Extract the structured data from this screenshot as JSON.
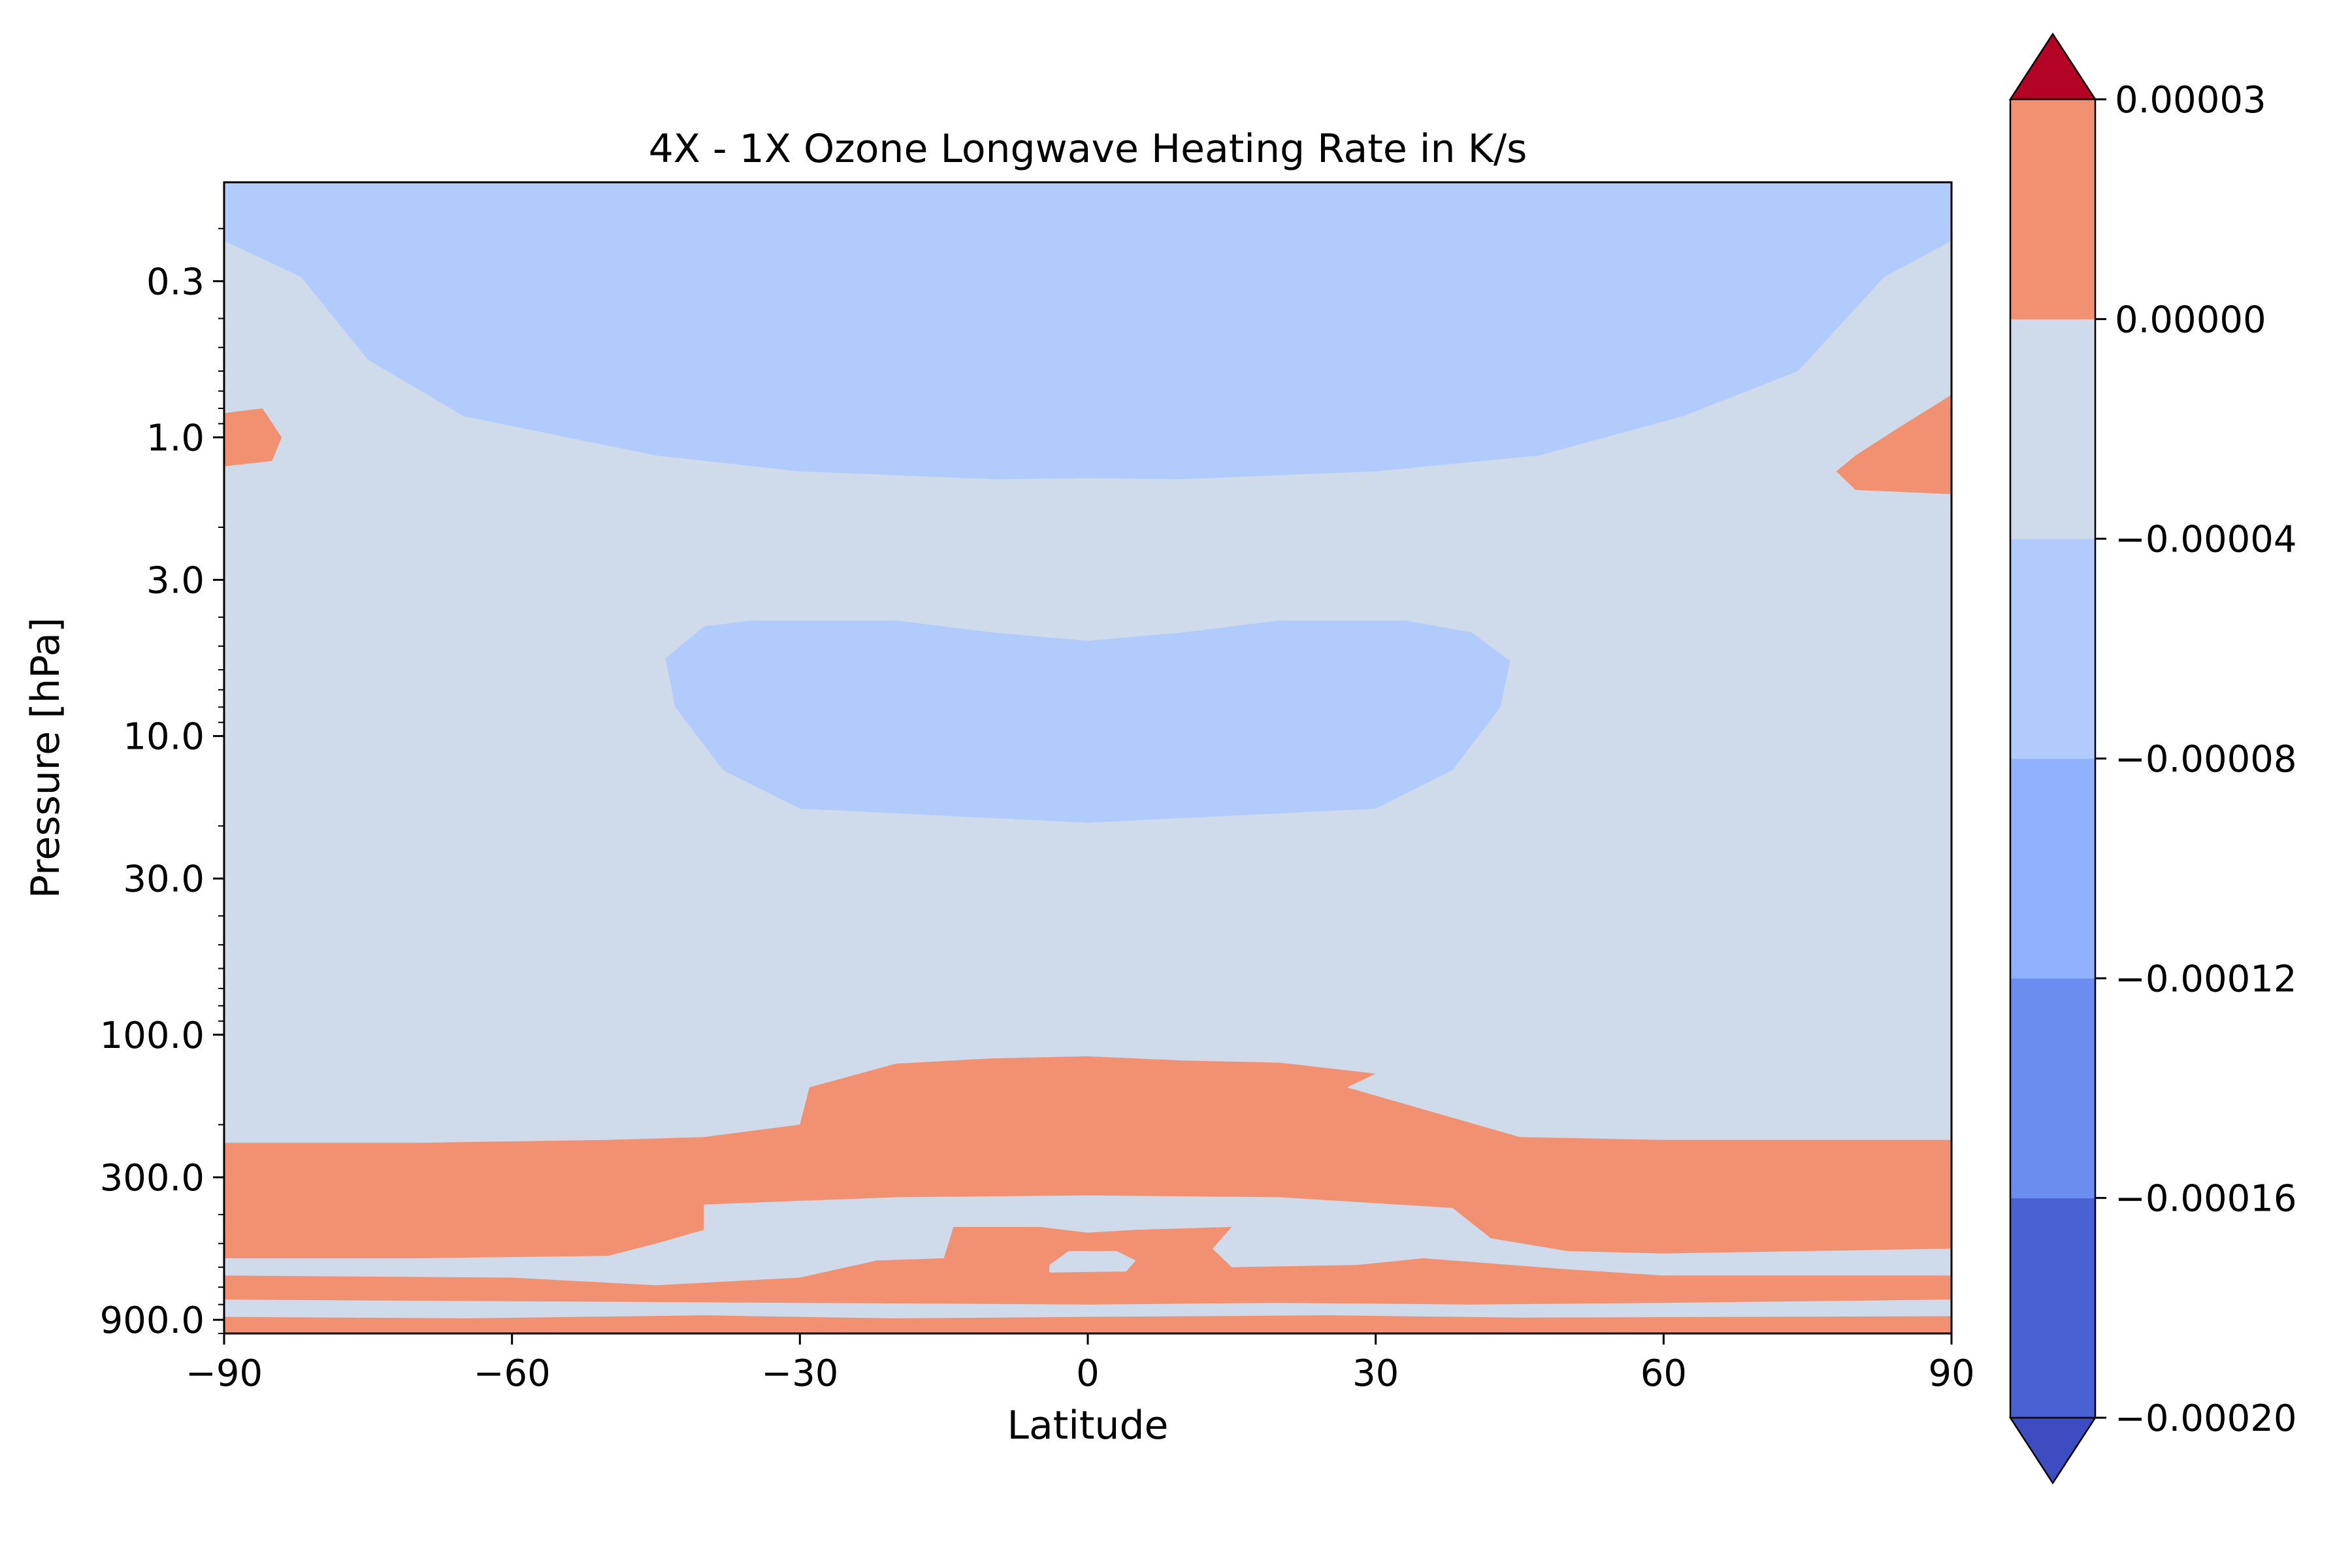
{
  "chart_data": {
    "type": "filled-contour",
    "title": "4X - 1X Ozone Longwave Heating Rate in K/s",
    "xlabel": "Latitude",
    "ylabel": "Pressure [hPa]",
    "x_ticks": [
      -90,
      -60,
      -30,
      0,
      30,
      60,
      90
    ],
    "x_tick_labels": [
      "−90",
      "−60",
      "−30",
      "0",
      "30",
      "60",
      "90"
    ],
    "xlim": [
      -90,
      90
    ],
    "y_scale": "log",
    "y_inverted": true,
    "ylim": [
      1000,
      0.14
    ],
    "y_ticks": [
      0.3,
      1.0,
      3.0,
      10.0,
      30.0,
      100.0,
      300.0,
      900.0
    ],
    "y_tick_labels": [
      "0.3",
      "1.0",
      "3.0",
      "10.0",
      "30.0",
      "100.0",
      "300.0",
      "900.0"
    ],
    "levels": [
      -0.0002,
      -0.00016,
      -0.00012,
      -8e-05,
      -4e-05,
      0.0,
      3e-05
    ],
    "level_colors": [
      "#4961d2",
      "#6b8df0",
      "#8fb1fe",
      "#b0cbfc",
      "#cfdaea",
      "#f29072"
    ],
    "under_color": "#3d4dc1",
    "over_color": "#b40426",
    "colorbar": {
      "extend": "both",
      "ticks": [
        3e-05,
        0.0,
        -4e-05,
        -8e-05,
        -0.00012,
        -0.00016,
        -0.0002
      ],
      "tick_labels": [
        "0.00003",
        "0.00000",
        "−0.00004",
        "−0.00008",
        "−0.00012",
        "−0.00016",
        "−0.00020"
      ]
    },
    "regions": [
      {
        "level_index": 2,
        "points": [
          [
            -88,
            0.14
          ],
          [
            -73,
            0.32
          ],
          [
            -60,
            0.62
          ],
          [
            -45,
            0.82
          ],
          [
            -30,
            0.92
          ],
          [
            0,
            1.0
          ],
          [
            30,
            0.92
          ],
          [
            45,
            0.82
          ],
          [
            60,
            0.62
          ],
          [
            73,
            0.32
          ],
          [
            88,
            0.14
          ]
        ]
      },
      {
        "level_index": 1,
        "points": [
          [
            -60,
            0.14
          ],
          [
            -66,
            0.28
          ],
          [
            -62,
            0.45
          ],
          [
            -50,
            0.62
          ],
          [
            -30,
            0.75
          ],
          [
            0,
            0.83
          ],
          [
            30,
            0.75
          ],
          [
            50,
            0.62
          ],
          [
            62,
            0.45
          ],
          [
            66,
            0.28
          ],
          [
            60,
            0.14
          ]
        ]
      },
      {
        "level_index": 0,
        "points": [
          [
            -42,
            0.28
          ],
          [
            -40,
            0.45
          ],
          [
            -25,
            0.5
          ],
          [
            -10,
            0.56
          ],
          [
            0,
            0.6
          ],
          [
            10,
            0.56
          ],
          [
            25,
            0.5
          ],
          [
            40,
            0.45
          ],
          [
            42,
            0.28
          ],
          [
            25,
            0.26
          ],
          [
            10,
            0.23
          ],
          [
            0,
            0.22
          ],
          [
            -10,
            0.23
          ],
          [
            -25,
            0.26
          ]
        ]
      },
      {
        "level_index": 3,
        "points": [
          [
            -90,
            0.14
          ],
          [
            -90,
            0.22
          ],
          [
            -82,
            0.29
          ],
          [
            -75,
            0.55
          ],
          [
            -65,
            0.85
          ],
          [
            -45,
            1.15
          ],
          [
            -30,
            1.3
          ],
          [
            -10,
            1.38
          ],
          [
            0,
            1.37
          ],
          [
            10,
            1.38
          ],
          [
            30,
            1.3
          ],
          [
            47,
            1.15
          ],
          [
            62,
            0.85
          ],
          [
            74,
            0.6
          ],
          [
            83,
            0.29
          ],
          [
            90,
            0.22
          ],
          [
            90,
            0.14
          ]
        ]
      },
      {
        "level_index": 3,
        "points": [
          [
            -44,
            5.5
          ],
          [
            -40,
            4.3
          ],
          [
            -35,
            4.1
          ],
          [
            -20,
            4.1
          ],
          [
            -10,
            4.5
          ],
          [
            0,
            4.8
          ],
          [
            10,
            4.5
          ],
          [
            20,
            4.1
          ],
          [
            33,
            4.1
          ],
          [
            40,
            4.5
          ],
          [
            44,
            5.6
          ],
          [
            43,
            8
          ],
          [
            38,
            13
          ],
          [
            30,
            17.5
          ],
          [
            0,
            19.5
          ],
          [
            -30,
            17.5
          ],
          [
            -38,
            13
          ],
          [
            -43,
            8
          ]
        ]
      },
      {
        "level_index": 5,
        "points": [
          [
            -90,
            0.83
          ],
          [
            -86,
            0.8
          ],
          [
            -84,
            1.0
          ],
          [
            -85,
            1.2
          ],
          [
            -90,
            1.25
          ]
        ]
      },
      {
        "level_index": 5,
        "points": [
          [
            90,
            0.72
          ],
          [
            84,
            0.95
          ],
          [
            80,
            1.15
          ],
          [
            78,
            1.3
          ],
          [
            80,
            1.5
          ],
          [
            90,
            1.55
          ]
        ]
      },
      {
        "level_index": 5,
        "points": [
          [
            -90,
            230
          ],
          [
            -70,
            230
          ],
          [
            -50,
            225
          ],
          [
            -40,
            220
          ],
          [
            -30,
            200
          ],
          [
            -29,
            150
          ],
          [
            -20,
            125
          ],
          [
            -10,
            120
          ],
          [
            0,
            118
          ],
          [
            10,
            122
          ],
          [
            20,
            124
          ],
          [
            30,
            135
          ],
          [
            27,
            150
          ],
          [
            45,
            220
          ],
          [
            60,
            225
          ],
          [
            90,
            225
          ],
          [
            90,
            520
          ],
          [
            75,
            530
          ],
          [
            60,
            540
          ],
          [
            50,
            530
          ],
          [
            42,
            480
          ],
          [
            38,
            380
          ],
          [
            20,
            350
          ],
          [
            0,
            345
          ],
          [
            -20,
            350
          ],
          [
            -40,
            370
          ],
          [
            -40,
            450
          ],
          [
            -45,
            500
          ],
          [
            -50,
            550
          ],
          [
            -70,
            560
          ],
          [
            -90,
            560
          ]
        ]
      },
      {
        "level_index": 5,
        "points": [
          [
            -90,
            640
          ],
          [
            -60,
            650
          ],
          [
            -45,
            690
          ],
          [
            -30,
            650
          ],
          [
            -22,
            570
          ],
          [
            -15,
            560
          ],
          [
            -14,
            440
          ],
          [
            -5,
            440
          ],
          [
            0,
            460
          ],
          [
            5,
            450
          ],
          [
            15,
            440
          ],
          [
            13,
            520
          ],
          [
            15,
            600
          ],
          [
            28,
            590
          ],
          [
            35,
            560
          ],
          [
            50,
            610
          ],
          [
            60,
            640
          ],
          [
            90,
            640
          ],
          [
            90,
            770
          ],
          [
            60,
            790
          ],
          [
            40,
            800
          ],
          [
            20,
            790
          ],
          [
            0,
            800
          ],
          [
            -30,
            790
          ],
          [
            -60,
            780
          ],
          [
            -90,
            770
          ]
        ]
      },
      {
        "level_index": 4,
        "points": [
          [
            -4,
            590
          ],
          [
            -2,
            530
          ],
          [
            3,
            530
          ],
          [
            5,
            570
          ],
          [
            4,
            620
          ],
          [
            -4,
            625
          ]
        ]
      },
      {
        "level_index": 5,
        "points": [
          [
            -90,
            880
          ],
          [
            -65,
            890
          ],
          [
            -40,
            870
          ],
          [
            -20,
            890
          ],
          [
            0,
            880
          ],
          [
            25,
            870
          ],
          [
            45,
            885
          ],
          [
            70,
            880
          ],
          [
            90,
            875
          ],
          [
            90,
            1000
          ],
          [
            -90,
            1000
          ]
        ]
      }
    ]
  }
}
